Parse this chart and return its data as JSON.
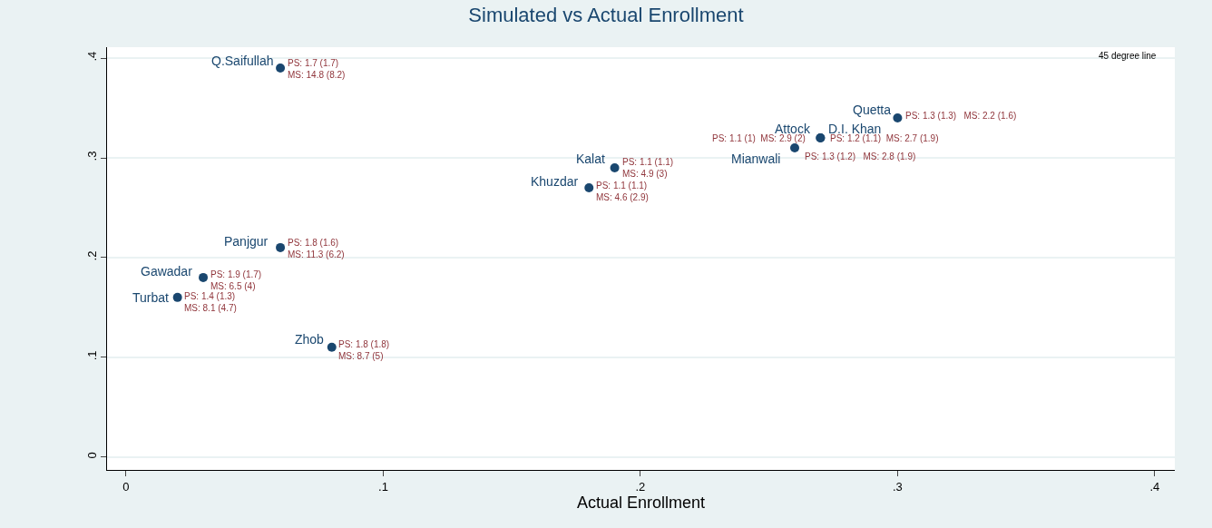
{
  "chart_data": {
    "type": "scatter",
    "title": "Simulated vs Actual Enrollment",
    "xlabel": "Actual Enrollment",
    "x": [
      0.06,
      0.3,
      0.27,
      0.27,
      0.26,
      0.19,
      0.18,
      0.06,
      0.03,
      0.02,
      0.08
    ],
    "values": [
      0.39,
      0.34,
      0.32,
      0.32,
      0.31,
      0.29,
      0.27,
      0.21,
      0.18,
      0.16,
      0.11
    ],
    "color": "#1a476f",
    "marker": "circle",
    "value_labels": [
      "Q.Saifullah",
      "Quetta",
      "Attock",
      "D.I. Khan",
      "Mianwali",
      "Kalat",
      "Khuzdar",
      "Panjgur",
      "Gawadar",
      "Turbat",
      "Zhob"
    ],
    "annotations": [
      {
        "text": "PS: 1.7 (1.7)\nMS: 14.8 (8.2)",
        "x": 0.06,
        "y": 0.39
      },
      {
        "text": "PS: 1.3 (1.3)   MS: 2.2 (1.6)",
        "x": 0.3,
        "y": 0.34
      },
      {
        "text": "PS: 1.1 (1)  MS: 2.9 (2)",
        "x": 0.27,
        "y": 0.32
      },
      {
        "text": "PS: 1.2 (1.1)  MS: 2.7 (1.9)",
        "x": 0.27,
        "y": 0.32
      },
      {
        "text": "PS: 1.3 (1.2)   MS: 2.8 (1.9)",
        "x": 0.26,
        "y": 0.31
      },
      {
        "text": "PS: 1.1 (1.1)\nMS: 4.9 (3)",
        "x": 0.19,
        "y": 0.29
      },
      {
        "text": "PS: 1.1 (1.1)\nMS: 4.6 (2.9)",
        "x": 0.18,
        "y": 0.27
      },
      {
        "text": "PS: 1.8 (1.6)\nMS: 11.3 (6.2)",
        "x": 0.06,
        "y": 0.21
      },
      {
        "text": "PS: 1.9 (1.7)\nMS: 6.5 (4)",
        "x": 0.03,
        "y": 0.18
      },
      {
        "text": "PS: 1.4 (1.3)\nMS: 8.1 (4.7)",
        "x": 0.02,
        "y": 0.16
      },
      {
        "text": "PS: 1.8 (1.8)\nMS: 8.7 (5)",
        "x": 0.08,
        "y": 0.11
      },
      "45 degree line"
    ],
    "xlim": [
      -0.0074,
      0.4078
    ],
    "ylim": [
      -0.013,
      0.411
    ],
    "xticks": [
      0,
      {
        "value": 0.1,
        "label": ".1"
      },
      {
        "value": 0.2,
        "label": ".2"
      },
      {
        "value": 0.3,
        "label": ".3"
      },
      {
        "value": 0.4,
        "label": ".4"
      }
    ],
    "yticks": [
      0,
      {
        "value": 0.1,
        "label": ".1"
      },
      {
        "value": 0.2,
        "label": ".2"
      },
      {
        "value": 0.3,
        "label": ".3"
      },
      {
        "value": 0.4,
        "label": ".4"
      }
    ],
    "grid": "y"
  }
}
